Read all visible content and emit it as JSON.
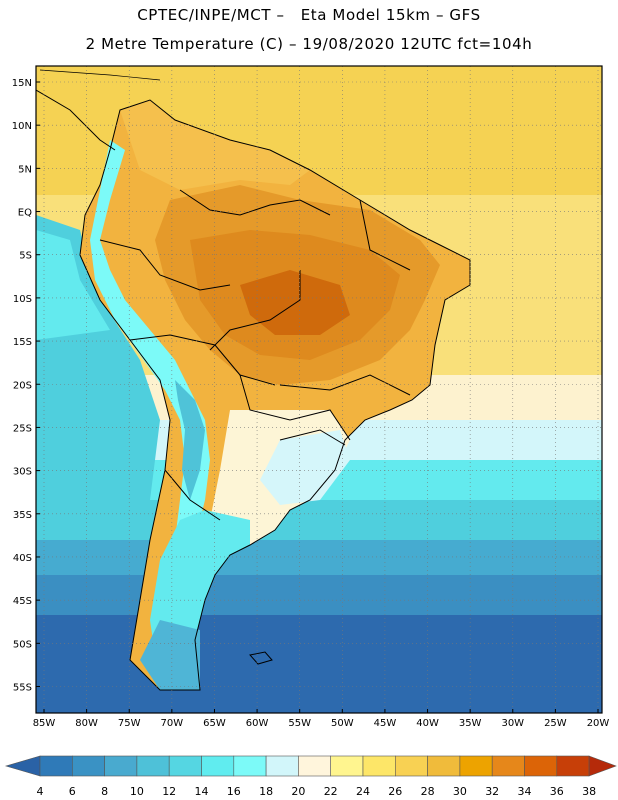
{
  "header": {
    "title_line1": "CPTEC/INPE/MCT –   Eta Model 15km – GFS",
    "title_line2": "2 Metre Temperature (C) – 19/08/2020 12UTC fct=104h"
  },
  "map": {
    "lat_labels": [
      "15N",
      "10N",
      "5N",
      "EQ",
      "5S",
      "10S",
      "15S",
      "20S",
      "25S",
      "30S",
      "35S",
      "40S",
      "45S",
      "50S",
      "55S"
    ],
    "lon_labels": [
      "85W",
      "80W",
      "75W",
      "70W",
      "65W",
      "60W",
      "55W",
      "50W",
      "45W",
      "40W",
      "35W",
      "30W",
      "25W",
      "20W"
    ],
    "lon_range": [
      -85,
      -20
    ],
    "lat_range": [
      -58,
      16
    ],
    "gridlines": "dotted"
  },
  "colorbar": {
    "labels": [
      "4",
      "6",
      "8",
      "10",
      "12",
      "14",
      "16",
      "18",
      "20",
      "22",
      "24",
      "26",
      "28",
      "30",
      "32",
      "34",
      "36",
      "38"
    ],
    "colors": [
      "#2a62a6",
      "#2f7ab8",
      "#3a92c4",
      "#49aacf",
      "#4ec1d8",
      "#55d6e2",
      "#60ecef",
      "#7cfaf8",
      "#d2f6fa",
      "#fff5dc",
      "#fff58f",
      "#fde668",
      "#f8d153",
      "#f0bb3b",
      "#eda300",
      "#e6871a",
      "#dc6407",
      "#c73f08",
      "#b52a0a"
    ]
  },
  "colors": {
    "land_hot": "#e08a1c",
    "land_warm": "#f2b23f",
    "ocean_tropical": "#f8d75b",
    "ocean_cold": "#2a62a6"
  }
}
